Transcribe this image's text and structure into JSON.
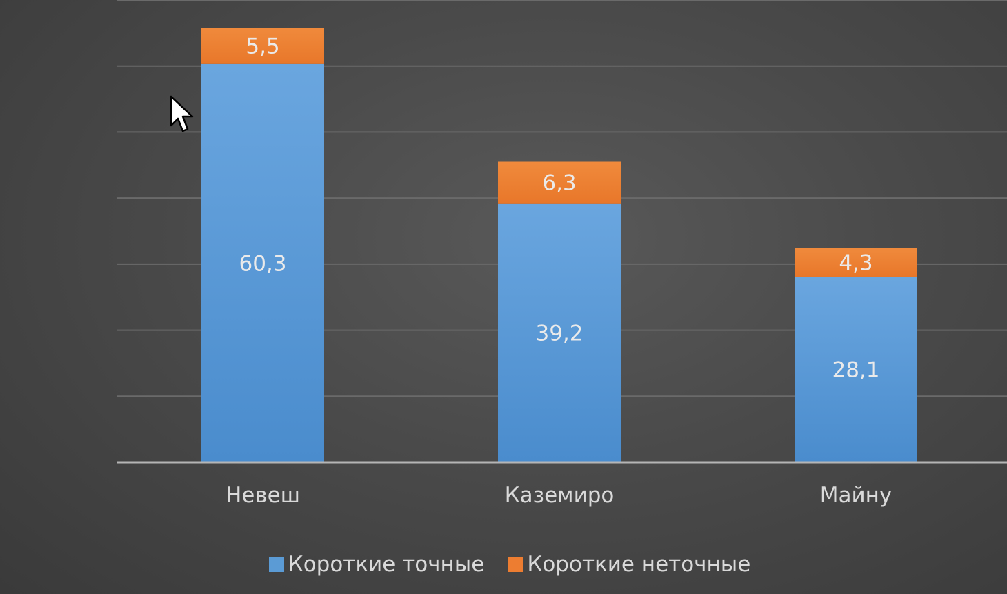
{
  "chart_data": {
    "type": "bar",
    "stacked": true,
    "categories": [
      "Невеш",
      "Каземиро",
      "Майну"
    ],
    "series": [
      {
        "name": "Короткие точные",
        "values": [
          60.3,
          39.2,
          28.1
        ],
        "labels": [
          "60,3",
          "39,2",
          "28,1"
        ],
        "color": "#5b9bd5"
      },
      {
        "name": "Короткие неточные",
        "values": [
          5.5,
          6.3,
          4.3
        ],
        "labels": [
          "5,5",
          "6,3",
          "4,3"
        ],
        "color": "#ed7d31"
      }
    ],
    "ylim": [
      0,
      70
    ],
    "grid": true,
    "legend": "bottom"
  },
  "icons": {
    "cursor": "mouse-pointer-icon"
  }
}
